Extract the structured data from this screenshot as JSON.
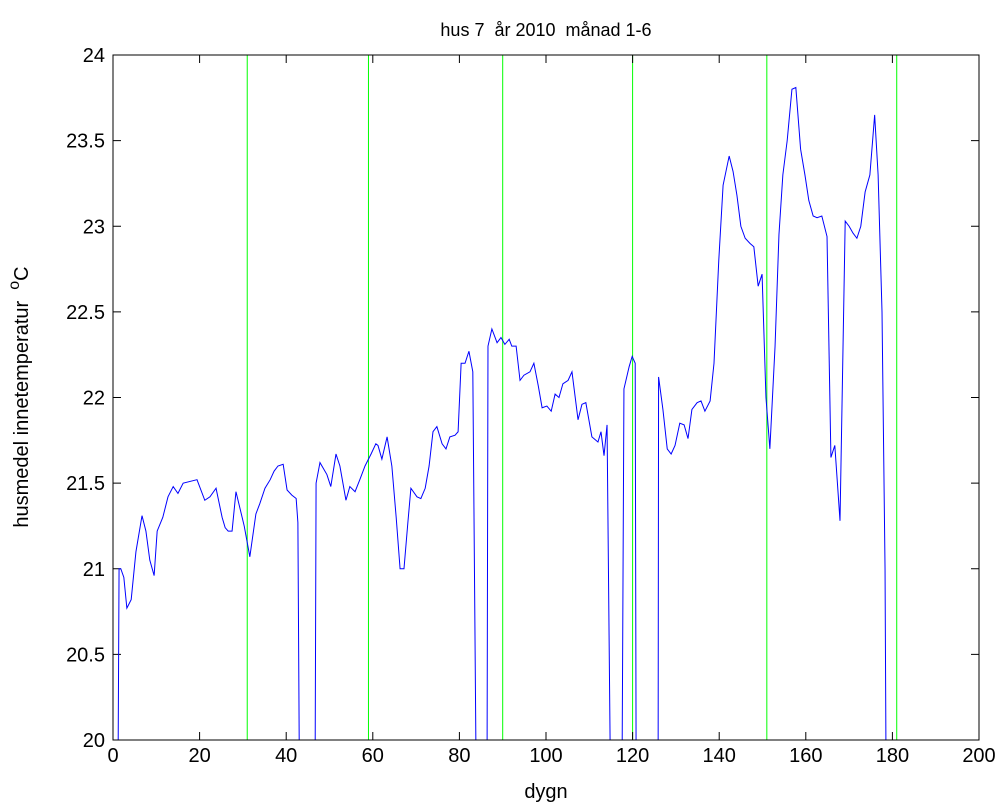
{
  "chart_data": {
    "type": "line",
    "title": "hus 7  år 2010  månad 1-6",
    "xlabel": "dygn",
    "ylabel": {
      "text": "husmedel innetemperatur  ",
      "superscript": "o",
      "unit": "C"
    },
    "xlim": [
      0,
      200
    ],
    "ylim": [
      20,
      24
    ],
    "xticks": [
      0,
      20,
      40,
      60,
      80,
      100,
      120,
      140,
      160,
      180,
      200
    ],
    "yticks": [
      20,
      {
        "value": 20.5,
        "label": "20.5"
      },
      21,
      {
        "value": 21.5,
        "label": "21.5"
      },
      22,
      {
        "value": 22.5,
        "label": "22.5"
      },
      23,
      {
        "value": 23.5,
        "label": "23.5"
      },
      24
    ],
    "grid": false,
    "vlines": {
      "color": "#00ff00",
      "x": [
        31,
        59,
        90,
        120,
        151,
        181
      ]
    },
    "series": [
      {
        "color": "#0000ff",
        "x": [
          1.2,
          1.4,
          1.8,
          2.5,
          3.2,
          4.2,
          5.3,
          6.7,
          7.6,
          8.5,
          9.5,
          10.2,
          11.5,
          12.7,
          13.9,
          15.0,
          16.2,
          19.4,
          21.2,
          22.4,
          23.8,
          25.2,
          25.9,
          26.6,
          27.5,
          28.4,
          30.3,
          31.6,
          33.0,
          33.9,
          35.1,
          36.3,
          37.2,
          38.1,
          39.3,
          40.2,
          41.3,
          42.3,
          42.7,
          43.0,
          46.7,
          46.9,
          47.8,
          49.4,
          50.3,
          51.5,
          52.4,
          53.8,
          54.7,
          55.9,
          57.0,
          58.2,
          59.6,
          60.7,
          61.2,
          62.1,
          63.3,
          64.4,
          65.4,
          66.3,
          67.2,
          68.1,
          68.8,
          70.2,
          71.1,
          72.1,
          73.0,
          73.9,
          74.8,
          76.0,
          76.9,
          77.8,
          79.0,
          79.7,
          80.4,
          81.3,
          82.2,
          83.1,
          83.8,
          86.4,
          86.6,
          87.5,
          88.7,
          89.6,
          90.5,
          91.5,
          92.1,
          93.1,
          94.0,
          94.9,
          96.3,
          97.2,
          98.2,
          99.1,
          100.2,
          101.2,
          102.1,
          103.0,
          103.9,
          105.1,
          106.0,
          107.4,
          108.3,
          109.2,
          110.6,
          112.0,
          112.7,
          113.4,
          114.1,
          114.8,
          117.6,
          118.0,
          119.2,
          119.9,
          120.6,
          120.8,
          125.9,
          126.0,
          127.0,
          128.0,
          128.9,
          129.8,
          130.9,
          131.9,
          132.8,
          133.7,
          134.9,
          135.8,
          136.7,
          137.9,
          138.8,
          139.9,
          140.9,
          142.3,
          143.2,
          144.1,
          145.0,
          146.0,
          147.1,
          148.0,
          149.0,
          149.9,
          150.8,
          151.7,
          152.9,
          153.8,
          154.7,
          155.7,
          156.8,
          157.7,
          158.8,
          159.8,
          160.7,
          161.7,
          162.6,
          163.7,
          164.9,
          165.8,
          166.7,
          167.9,
          169.1,
          170.0,
          170.9,
          171.8,
          172.7,
          173.7,
          174.8,
          175.9,
          176.7,
          177.6,
          178.3,
          178.5
        ],
        "values": [
          20,
          21.0,
          21.0,
          20.95,
          20.77,
          20.82,
          21.1,
          21.31,
          21.22,
          21.05,
          20.96,
          21.22,
          21.3,
          21.42,
          21.48,
          21.44,
          21.5,
          21.52,
          21.4,
          21.42,
          21.47,
          21.3,
          21.24,
          21.22,
          21.22,
          21.45,
          21.25,
          21.07,
          21.32,
          21.38,
          21.47,
          21.52,
          21.57,
          21.6,
          21.61,
          21.46,
          21.43,
          21.41,
          21.27,
          20,
          20,
          21.5,
          21.62,
          21.55,
          21.48,
          21.67,
          21.6,
          21.4,
          21.48,
          21.45,
          21.52,
          21.6,
          21.67,
          21.73,
          21.72,
          21.64,
          21.77,
          21.6,
          21.3,
          21.0,
          21.0,
          21.27,
          21.47,
          21.42,
          21.41,
          21.47,
          21.6,
          21.8,
          21.83,
          21.73,
          21.7,
          21.77,
          21.78,
          21.8,
          22.2,
          22.2,
          22.27,
          22.15,
          20,
          20,
          22.3,
          22.4,
          22.32,
          22.35,
          22.31,
          22.34,
          22.3,
          22.3,
          22.1,
          22.13,
          22.15,
          22.2,
          22.07,
          21.94,
          21.95,
          21.92,
          22.02,
          22.0,
          22.08,
          22.1,
          22.15,
          21.87,
          21.96,
          21.97,
          21.77,
          21.74,
          21.8,
          21.66,
          21.84,
          20,
          20,
          22.05,
          22.18,
          22.24,
          22.2,
          20,
          20,
          22.12,
          21.93,
          21.7,
          21.67,
          21.72,
          21.85,
          21.84,
          21.76,
          21.93,
          21.97,
          21.98,
          21.92,
          21.98,
          22.2,
          22.8,
          23.24,
          23.41,
          23.32,
          23.18,
          23.0,
          22.93,
          22.9,
          22.88,
          22.65,
          22.72,
          22.0,
          21.7,
          22.3,
          22.95,
          23.3,
          23.5,
          23.8,
          23.81,
          23.45,
          23.3,
          23.15,
          23.06,
          23.05,
          23.06,
          22.94,
          21.65,
          21.72,
          21.28,
          23.03,
          23.0,
          22.96,
          22.93,
          23.0,
          23.2,
          23.3,
          23.65,
          23.3,
          22.5,
          21.0,
          20
        ]
      }
    ]
  }
}
